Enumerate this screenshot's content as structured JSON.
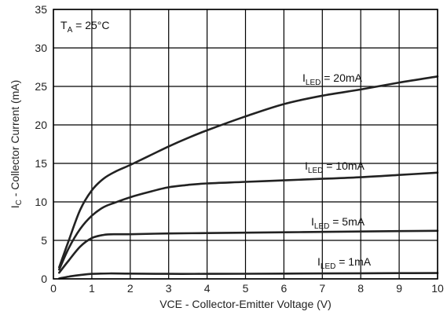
{
  "chart_data": {
    "type": "line",
    "title": "",
    "xlabel": "VCE - Collector-Emitter Voltage (V)",
    "ylabel": "IC - Collector Current (mA)",
    "ylabel_parts": [
      "I",
      "C",
      " - Collector Current (mA)"
    ],
    "xlim": [
      0,
      10
    ],
    "ylim": [
      0,
      35
    ],
    "x_ticks": [
      0,
      1,
      2,
      3,
      4,
      5,
      6,
      7,
      8,
      9,
      10
    ],
    "y_ticks": [
      0,
      5,
      10,
      15,
      20,
      25,
      30,
      35
    ],
    "grid": true,
    "annotation": {
      "parts": [
        "T",
        "A",
        " = 25°C"
      ]
    },
    "series": [
      {
        "name": "ILED = 20mA",
        "label_parts": [
          "I",
          "LED",
          " = 20mA"
        ],
        "x": [
          0.15,
          0.4,
          0.7,
          1.0,
          1.3,
          1.6,
          2.0,
          2.5,
          3.0,
          3.5,
          4.0,
          5.0,
          6.0,
          7.0,
          8.0,
          9.0,
          10.0
        ],
        "y": [
          1.5,
          5.0,
          9.0,
          11.5,
          13.0,
          13.9,
          14.8,
          16.0,
          17.2,
          18.3,
          19.3,
          21.1,
          22.7,
          23.8,
          24.6,
          25.5,
          26.3
        ]
      },
      {
        "name": "ILED = 10mA",
        "label_parts": [
          "I",
          "LED",
          " = 10mA"
        ],
        "x": [
          0.15,
          0.4,
          0.7,
          1.0,
          1.3,
          1.6,
          2.0,
          2.5,
          3.0,
          3.5,
          4.0,
          5.0,
          6.0,
          7.0,
          8.0,
          9.0,
          10.0
        ],
        "y": [
          1.2,
          4.0,
          6.5,
          8.2,
          9.3,
          9.9,
          10.6,
          11.3,
          11.9,
          12.2,
          12.4,
          12.6,
          12.8,
          13.0,
          13.2,
          13.5,
          13.8
        ]
      },
      {
        "name": "ILED = 5mA",
        "label_parts": [
          "I",
          "LED",
          " = 5mA"
        ],
        "x": [
          0.15,
          0.4,
          0.7,
          1.0,
          1.3,
          1.6,
          2.0,
          3.0,
          4.0,
          5.0,
          6.0,
          7.0,
          8.0,
          9.0,
          10.0
        ],
        "y": [
          0.8,
          2.4,
          4.2,
          5.3,
          5.7,
          5.8,
          5.8,
          5.9,
          5.95,
          6.0,
          6.05,
          6.1,
          6.15,
          6.2,
          6.25
        ]
      },
      {
        "name": "ILED = 1mA",
        "label_parts": [
          "I",
          "LED",
          " = 1mA"
        ],
        "x": [
          0.15,
          0.4,
          0.7,
          1.0,
          1.5,
          2.0,
          3.0,
          4.0,
          5.0,
          6.0,
          7.0,
          8.0,
          9.0,
          10.0
        ],
        "y": [
          0.05,
          0.3,
          0.5,
          0.65,
          0.7,
          0.68,
          0.65,
          0.65,
          0.66,
          0.68,
          0.7,
          0.72,
          0.74,
          0.76
        ]
      }
    ]
  }
}
